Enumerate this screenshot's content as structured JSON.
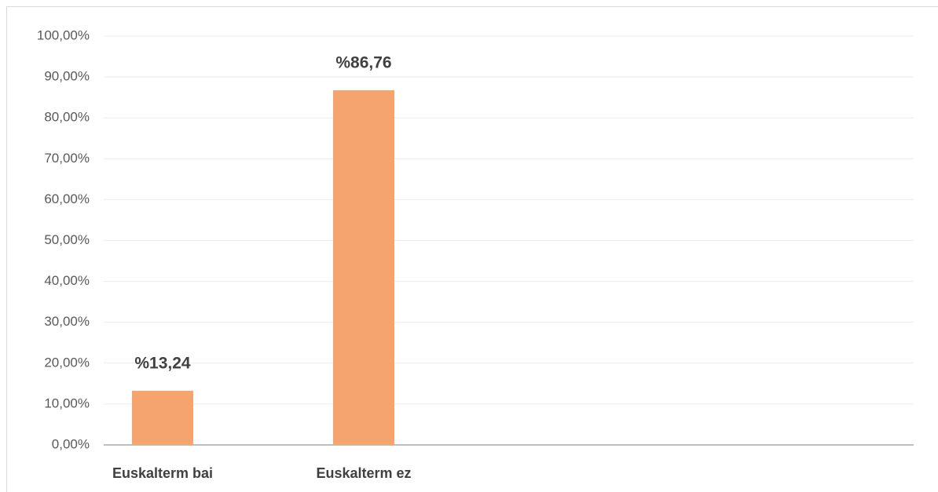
{
  "chart_data": {
    "type": "bar",
    "categories": [
      "Euskalterm bai",
      "Euskalterm ez"
    ],
    "values": [
      13.24,
      86.76
    ],
    "value_labels": [
      "%13,24",
      "%86,76"
    ],
    "color": "#f4a46c",
    "ylim": [
      0,
      100
    ],
    "yticks": [
      {
        "value": 0,
        "label": "0,00%"
      },
      {
        "value": 10,
        "label": "10,00%"
      },
      {
        "value": 20,
        "label": "20,00%"
      },
      {
        "value": 30,
        "label": "30,00%"
      },
      {
        "value": 40,
        "label": "40,00%"
      },
      {
        "value": 50,
        "label": "50,00%"
      },
      {
        "value": 60,
        "label": "60,00%"
      },
      {
        "value": 70,
        "label": "70,00%"
      },
      {
        "value": 80,
        "label": "80,00%"
      },
      {
        "value": 90,
        "label": "90,00%"
      },
      {
        "value": 100,
        "label": "100,00%"
      }
    ],
    "grid": true
  }
}
